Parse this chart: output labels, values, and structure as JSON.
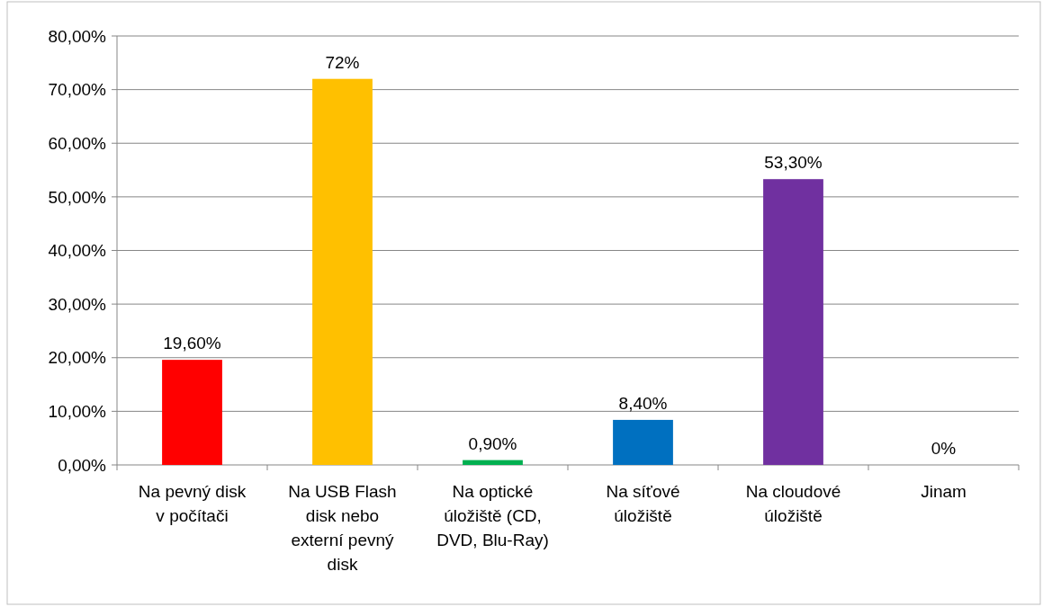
{
  "chart_data": {
    "type": "bar",
    "categories": [
      "Na pevný disk v počítači",
      "Na USB Flash disk nebo externí pevný disk",
      "Na optické úložiště (CD, DVD, Blu-Ray)",
      "Na síťové úložiště",
      "Na cloudové úložiště",
      "Jinam"
    ],
    "values": [
      19.6,
      72,
      0.9,
      8.4,
      53.3,
      0
    ],
    "colors": [
      "#ff0000",
      "#ffc000",
      "#00b050",
      "#0070c0",
      "#7030a0",
      "#a5a5a5"
    ],
    "value_labels": [
      "19,60%",
      "72%",
      "0,90%",
      "8,40%",
      "53,30%",
      "0%"
    ],
    "ylim": [
      0,
      80
    ],
    "yticks": [
      {
        "value": 0,
        "label": "0,00%"
      },
      {
        "value": 10,
        "label": "10,00%"
      },
      {
        "value": 20,
        "label": "20,00%"
      },
      {
        "value": 30,
        "label": "30,00%"
      },
      {
        "value": 40,
        "label": "40,00%"
      },
      {
        "value": 50,
        "label": "50,00%"
      },
      {
        "value": 60,
        "label": "60,00%"
      },
      {
        "value": 70,
        "label": "70,00%"
      },
      {
        "value": 80,
        "label": "80,00%"
      }
    ],
    "grid": "y"
  }
}
